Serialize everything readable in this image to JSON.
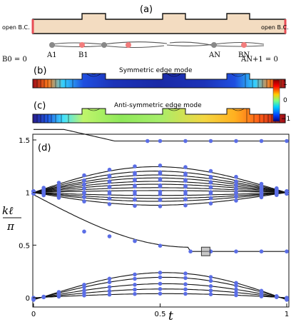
{
  "panel_a": {
    "label": "(a)",
    "left_bc": "open B.C.",
    "right_bc": "open B.C.",
    "left_zero": "B0 = 0",
    "right_zero": "AN+1 = 0",
    "site_labels": [
      "A1",
      "B1",
      "AN",
      "BN"
    ]
  },
  "panel_b": {
    "label": "(b)",
    "title": "Symmetric edge mode"
  },
  "panel_c": {
    "label": "(c)",
    "title": "Anti-symmetric edge mode"
  },
  "colorbar": {
    "ticks": [
      "1",
      "0",
      "−1"
    ]
  },
  "panel_d": {
    "label": "(d)"
  },
  "colors": {
    "waveguide_fill": "#f3dcc1",
    "boundary": "#e74c55",
    "site_a": "#888888",
    "site_b": "#f27d7d",
    "dots": "#5b6ee6"
  },
  "chart_data": {
    "type": "scatter",
    "xlabel": "t",
    "ylabel": "kℓ/π",
    "xlim": [
      0,
      1
    ],
    "ylim": [
      -0.05,
      1.55
    ],
    "xticks": [
      "0",
      "0.5",
      "1"
    ],
    "yticks": [
      "0",
      "0.5",
      "1",
      "1.5"
    ],
    "dot_x": [
      0.0,
      0.04,
      0.1,
      0.2,
      0.3,
      0.4,
      0.5,
      0.6,
      0.7,
      0.8,
      0.9,
      0.96,
      1.0
    ],
    "bands_upper_amplitude": [
      -0.13,
      -0.09,
      -0.06,
      -0.03,
      0.02,
      0.05,
      0.085,
      0.115,
      0.15,
      0.18,
      0.22,
      0.265
    ],
    "bands_lower_amplitude": [
      0.035,
      0.08,
      0.13,
      0.19,
      0.235
    ],
    "edge_mode_level": 0.44,
    "upper_edge_level": 1.49,
    "highlight_point": {
      "x": 0.68,
      "y": 0.44
    }
  }
}
